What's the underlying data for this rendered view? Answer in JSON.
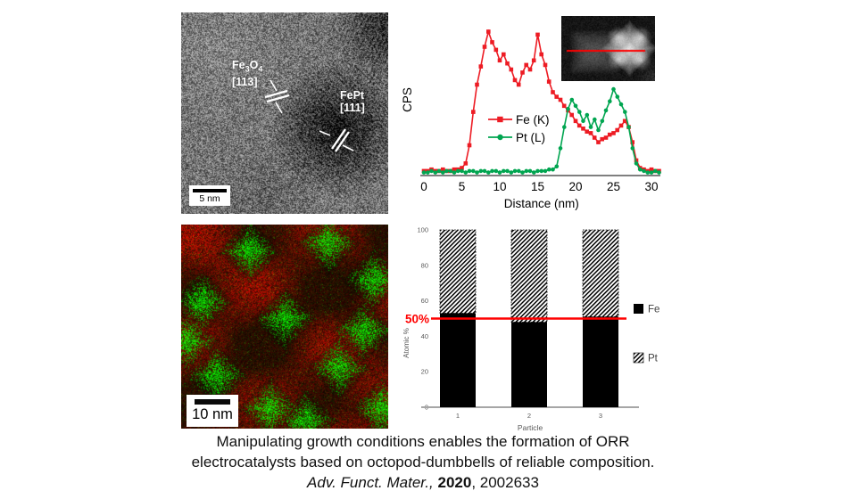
{
  "hrtem": {
    "phase1": {
      "f1": "Fe",
      "s1": "3",
      "f2": "O",
      "s2": "4",
      "plane": "[113]"
    },
    "phase2": {
      "name": "FePt",
      "plane": "[111]"
    },
    "scale_bar_label": "5 nm"
  },
  "eds_map": {
    "scale_bar_label": "10 nm"
  },
  "caption": {
    "line1": "Manipulating growth conditions enables the formation of ORR",
    "line2": "electrocatalysts based on octopod-dumbbells of reliable composition.",
    "journal_italic": "Adv. Funct. Mater., ",
    "year_bold": "2020",
    "tail": ", 2002633"
  },
  "colors": {
    "fe_red": "#ed1c24",
    "pt_green": "#00a550",
    "ref_red": "#ff0000",
    "axis_gray": "#7f7f7f",
    "muted_gray": "#595959"
  },
  "chart_data": [
    {
      "type": "line",
      "title": "",
      "xlabel": "Distance (nm)",
      "ylabel": "CPS",
      "xlim": [
        0,
        31
      ],
      "ylim": [
        0,
        100
      ],
      "xticks": [
        0,
        5,
        10,
        15,
        20,
        25,
        30
      ],
      "legend_position": "inside center-left",
      "x": [
        0,
        0.5,
        1,
        1.5,
        2,
        2.5,
        3,
        3.5,
        4,
        4.5,
        5,
        5.5,
        6,
        6.5,
        7,
        7.5,
        8,
        8.5,
        9,
        9.5,
        10,
        10.5,
        11,
        11.5,
        12,
        12.5,
        13,
        13.5,
        14,
        14.5,
        15,
        15.5,
        16,
        16.5,
        17,
        17.5,
        18,
        18.5,
        19,
        19.5,
        20,
        20.5,
        21,
        21.5,
        22,
        22.5,
        23,
        23.5,
        24,
        24.5,
        25,
        25.5,
        26,
        26.5,
        27,
        27.5,
        28,
        28.5,
        29,
        29.5,
        30,
        30.5,
        31
      ],
      "series": [
        {
          "name": "Fe (K)",
          "color": "#ed1c24",
          "marker": "square",
          "values": [
            3,
            3,
            4,
            3,
            3,
            4,
            3,
            3,
            4,
            4,
            5,
            8,
            20,
            42,
            60,
            72,
            85,
            95,
            88,
            83,
            76,
            80,
            74,
            70,
            63,
            60,
            68,
            73,
            70,
            76,
            93,
            80,
            73,
            62,
            55,
            52,
            50,
            46,
            43,
            40,
            36,
            33,
            31,
            29,
            28,
            25,
            22,
            24,
            25,
            27,
            28,
            30,
            33,
            36,
            32,
            22,
            10,
            5,
            4,
            3,
            4,
            3,
            3
          ]
        },
        {
          "name": "Pt (L)",
          "color": "#00a550",
          "marker": "circle",
          "values": [
            2,
            2,
            3,
            2,
            3,
            2,
            3,
            3,
            2,
            3,
            3,
            2,
            3,
            3,
            2,
            3,
            3,
            2,
            3,
            3,
            2,
            3,
            3,
            2,
            3,
            3,
            2,
            3,
            3,
            2,
            3,
            3,
            3,
            4,
            4,
            6,
            18,
            32,
            44,
            50,
            46,
            42,
            36,
            40,
            32,
            37,
            30,
            36,
            43,
            49,
            57,
            52,
            47,
            42,
            32,
            18,
            8,
            4,
            3,
            2,
            2,
            3,
            2
          ]
        }
      ]
    },
    {
      "type": "bar",
      "stacked": true,
      "title": "",
      "xlabel": "Particle",
      "ylabel": "Atomic %",
      "ylim": [
        0,
        100
      ],
      "yticks": [
        0,
        20,
        40,
        60,
        80,
        100
      ],
      "categories": [
        "1",
        "2",
        "3"
      ],
      "series": [
        {
          "name": "Fe",
          "style": "solid-black",
          "values": [
            53,
            48,
            51
          ]
        },
        {
          "name": "Pt",
          "style": "hatched",
          "values": [
            47,
            52,
            49
          ]
        }
      ],
      "ref_line": {
        "value": 50,
        "label": "50%",
        "color": "#ff0000"
      },
      "legend_position": "right"
    }
  ]
}
